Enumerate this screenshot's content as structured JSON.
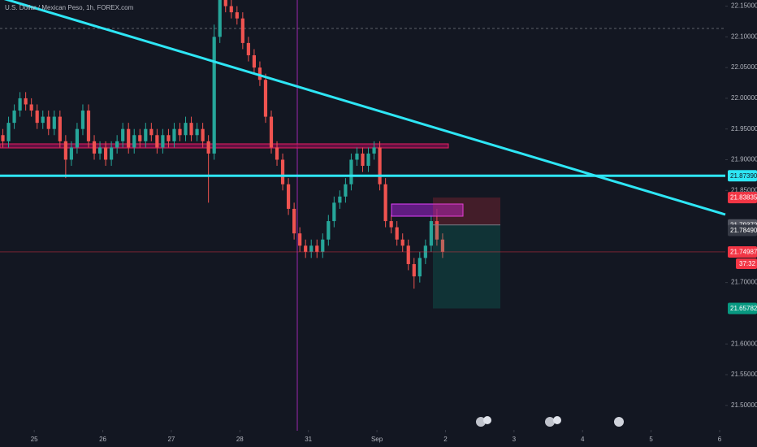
{
  "chart_data": {
    "type": "candlestick",
    "title": "U.S. Dollar / Mexican Peso, 1h, FOREX.com",
    "x": [
      -11,
      -9,
      -7,
      -5,
      -3,
      -1,
      1,
      3,
      5,
      7,
      9,
      11,
      13,
      15,
      17,
      19,
      21,
      23,
      25,
      27,
      29,
      31,
      33,
      35,
      37,
      39,
      41,
      43,
      45,
      47,
      49,
      51,
      53,
      55,
      57,
      59,
      61,
      63,
      65,
      67,
      69,
      71,
      73,
      75,
      77,
      79,
      81,
      83,
      85,
      87,
      89,
      91,
      93,
      95,
      97,
      99,
      101,
      103,
      105,
      107,
      109,
      111,
      113,
      115,
      117,
      119,
      121,
      123,
      125,
      127,
      129,
      131,
      133,
      135,
      137,
      139,
      141,
      143
    ],
    "open": [
      21.94,
      21.93,
      21.96,
      21.98,
      22.0,
      21.99,
      21.98,
      21.96,
      21.97,
      21.95,
      21.97,
      21.93,
      21.9,
      21.92,
      21.95,
      21.98,
      21.93,
      21.91,
      21.92,
      21.9,
      21.92,
      21.93,
      21.95,
      21.92,
      21.94,
      21.93,
      21.95,
      21.94,
      21.92,
      21.94,
      21.93,
      21.95,
      21.94,
      21.96,
      21.94,
      21.95,
      21.93,
      21.91,
      22.1,
      22.16,
      22.15,
      22.14,
      22.13,
      22.09,
      22.07,
      22.05,
      22.03,
      21.97,
      21.92,
      21.9,
      21.86,
      21.82,
      21.78,
      21.76,
      21.75,
      21.76,
      21.75,
      21.77,
      21.8,
      21.83,
      21.84,
      21.86,
      21.9,
      21.91,
      21.89,
      21.91,
      21.92,
      21.86,
      21.8,
      21.79,
      21.77,
      21.76,
      21.73,
      21.71,
      21.74,
      21.76,
      21.8,
      21.77
    ],
    "high": [
      21.95,
      21.97,
      21.99,
      22.01,
      22.01,
      22.0,
      21.99,
      21.98,
      21.98,
      21.98,
      21.98,
      21.94,
      21.93,
      21.96,
      21.99,
      21.99,
      21.94,
      21.93,
      21.93,
      21.93,
      21.94,
      21.96,
      21.96,
      21.95,
      21.95,
      21.96,
      21.96,
      21.95,
      21.95,
      21.95,
      21.96,
      21.96,
      21.97,
      21.97,
      21.96,
      21.96,
      21.94,
      22.12,
      22.18,
      22.17,
      22.16,
      22.15,
      22.14,
      22.1,
      22.08,
      22.06,
      22.04,
      21.98,
      21.93,
      21.91,
      21.87,
      21.83,
      21.79,
      21.77,
      21.77,
      21.77,
      21.78,
      21.81,
      21.84,
      21.85,
      21.87,
      21.91,
      21.92,
      21.92,
      21.92,
      21.93,
      21.93,
      21.87,
      21.81,
      21.8,
      21.78,
      21.77,
      21.74,
      21.75,
      21.77,
      21.81,
      21.82,
      21.78
    ],
    "low": [
      21.92,
      21.92,
      21.95,
      21.97,
      21.98,
      21.97,
      21.95,
      21.95,
      21.94,
      21.94,
      21.92,
      21.87,
      21.89,
      21.91,
      21.94,
      21.92,
      21.9,
      21.9,
      21.89,
      21.89,
      21.91,
      21.92,
      21.91,
      21.91,
      21.92,
      21.92,
      21.93,
      21.91,
      21.91,
      21.92,
      21.92,
      21.93,
      21.93,
      21.93,
      21.93,
      21.92,
      21.83,
      21.9,
      22.09,
      22.14,
      22.13,
      22.12,
      22.08,
      22.06,
      22.04,
      22.02,
      21.96,
      21.91,
      21.89,
      21.85,
      21.81,
      21.77,
      21.75,
      21.74,
      21.74,
      21.74,
      21.74,
      21.76,
      21.79,
      21.82,
      21.83,
      21.85,
      21.89,
      21.88,
      21.88,
      21.9,
      21.85,
      21.79,
      21.78,
      21.76,
      21.75,
      21.72,
      21.69,
      21.7,
      21.73,
      21.75,
      21.76,
      21.74
    ],
    "close": [
      21.93,
      21.96,
      21.98,
      22.0,
      21.99,
      21.98,
      21.96,
      21.97,
      21.95,
      21.97,
      21.93,
      21.9,
      21.92,
      21.95,
      21.98,
      21.93,
      21.91,
      21.92,
      21.9,
      21.92,
      21.93,
      21.95,
      21.92,
      21.94,
      21.93,
      21.95,
      21.94,
      21.92,
      21.94,
      21.93,
      21.95,
      21.94,
      21.96,
      21.94,
      21.95,
      21.93,
      21.91,
      22.1,
      22.16,
      22.15,
      22.14,
      22.13,
      22.09,
      22.07,
      22.05,
      22.03,
      21.97,
      21.92,
      21.9,
      21.86,
      21.82,
      21.78,
      21.76,
      21.75,
      21.76,
      21.75,
      21.77,
      21.8,
      21.83,
      21.84,
      21.86,
      21.9,
      21.91,
      21.89,
      21.91,
      21.92,
      21.86,
      21.8,
      21.79,
      21.77,
      21.76,
      21.73,
      21.71,
      21.74,
      21.76,
      21.8,
      21.77,
      21.75
    ],
    "up_color": "#26a69a",
    "down_color": "#ef5350",
    "xlim": [
      -12,
      242
    ],
    "xticks": [
      {
        "value": 0,
        "label": "25"
      },
      {
        "value": 24,
        "label": "26"
      },
      {
        "value": 48,
        "label": "27"
      },
      {
        "value": 72,
        "label": "28"
      },
      {
        "value": 96,
        "label": "31"
      },
      {
        "value": 120,
        "label": "Sep"
      },
      {
        "value": 144,
        "label": "2"
      },
      {
        "value": 168,
        "label": "3"
      },
      {
        "value": 192,
        "label": "4"
      },
      {
        "value": 216,
        "label": "5"
      },
      {
        "value": 240,
        "label": "6"
      }
    ],
    "ylim": [
      21.46,
      22.16
    ],
    "yticks": [
      {
        "value": 22.15,
        "label": "22.15000"
      },
      {
        "value": 22.1,
        "label": "22.10000"
      },
      {
        "value": 22.05,
        "label": "22.05000"
      },
      {
        "value": 22.0,
        "label": "22.00000"
      },
      {
        "value": 21.95,
        "label": "21.95000"
      },
      {
        "value": 21.9,
        "label": "21.90000"
      },
      {
        "value": 21.85,
        "label": "21.85000"
      },
      {
        "value": 21.7,
        "label": "21.70000"
      },
      {
        "value": 21.6,
        "label": "21.60000"
      },
      {
        "value": 21.55,
        "label": "21.55000"
      },
      {
        "value": 21.5,
        "label": "21.50000"
      }
    ],
    "levels": [
      {
        "value": 21.8739,
        "label": "21.87390",
        "color": "#2ee6f5"
      },
      {
        "value": 21.83835,
        "color": "#f23645"
      },
      {
        "value": 21.79372,
        "color": "#50535e"
      },
      {
        "value": 21.7849,
        "label": "21.78490",
        "color": "#363a45"
      },
      {
        "value": 21.74987,
        "color": "#f23645"
      },
      {
        "value": 21.65782,
        "color": "#089981"
      }
    ],
    "countdown": "37:32",
    "grid": false
  }
}
